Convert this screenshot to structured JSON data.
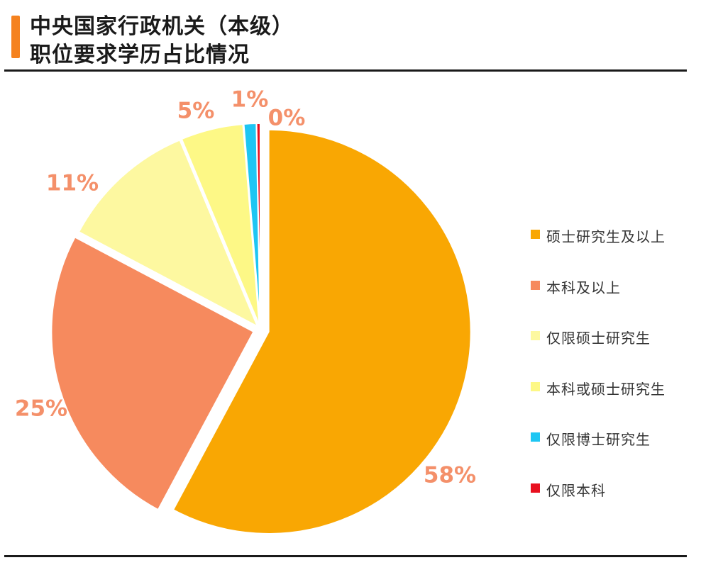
{
  "header": {
    "title_line1": "中央国家行政机关（本级）",
    "title_line2": "职位要求学历占比情况",
    "accent_color": "#F5821F"
  },
  "chart_data": {
    "type": "pie",
    "title": "中央国家行政机关（本级）职位要求学历占比情况",
    "categories": [
      "硕士研究生及以上",
      "本科及以上",
      "仅限硕士研究生",
      "本科或硕士研究生",
      "仅限博士研究生",
      "仅限本科"
    ],
    "values": [
      58,
      25,
      11,
      5,
      1,
      0.3
    ],
    "data_labels": [
      "58%",
      "25%",
      "11%",
      "5%",
      "1%",
      "0%"
    ],
    "colors": [
      "#F9A703",
      "#F68A5E",
      "#FDF8A0",
      "#FDF886",
      "#1EC6F3",
      "#E8101F"
    ],
    "label_color": "#F4906A",
    "legend_position": "right"
  }
}
